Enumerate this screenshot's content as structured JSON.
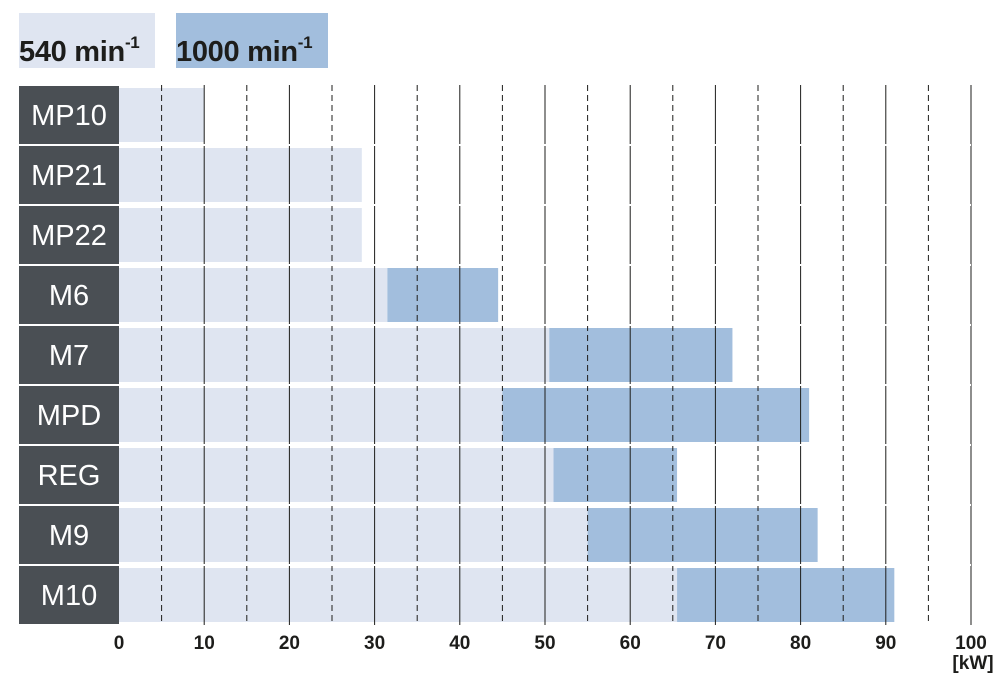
{
  "legend": {
    "items": [
      {
        "value": "540",
        "unit": "min",
        "exp": "-1",
        "color": "#dfe5f1"
      },
      {
        "value": "1000",
        "unit": "min",
        "exp": "-1",
        "color": "#a2bedd"
      }
    ]
  },
  "chart_data": {
    "type": "bar",
    "orientation": "horizontal",
    "categories": [
      "MP10",
      "MP21",
      "MP22",
      "M6",
      "M7",
      "MPD",
      "REG",
      "M9",
      "M10"
    ],
    "series": [
      {
        "name": "540 min-1",
        "color": "#dfe5f1",
        "values": [
          [
            0,
            10
          ],
          [
            0,
            28.5
          ],
          [
            0,
            28.5
          ],
          [
            0,
            31.5
          ],
          [
            0,
            50.5
          ],
          [
            0,
            45
          ],
          [
            0,
            51
          ],
          [
            0,
            55
          ],
          [
            0,
            65.5
          ]
        ]
      },
      {
        "name": "1000 min-1",
        "color": "#a2bedd",
        "values": [
          null,
          null,
          null,
          [
            31.5,
            44.5
          ],
          [
            50.5,
            72
          ],
          [
            45,
            81
          ],
          [
            51,
            65.5
          ],
          [
            55,
            82
          ],
          [
            65.5,
            91
          ]
        ]
      }
    ],
    "xlim": [
      0,
      100
    ],
    "xticks": [
      0,
      10,
      20,
      30,
      40,
      50,
      60,
      70,
      80,
      90,
      100
    ],
    "xlabel": "[kW]",
    "grid": {
      "major": "solid",
      "minor": "dashed"
    },
    "label_bg_color": "#4a4f54",
    "legend_position": "top-left"
  }
}
